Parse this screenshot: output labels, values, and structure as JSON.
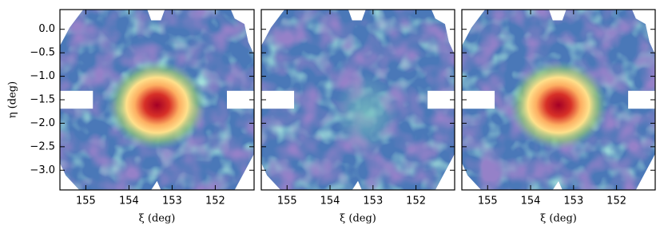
{
  "chart_data": [
    {
      "type": "heatmap",
      "xlabel": "ξ (deg)",
      "ylabel": "η (deg)",
      "xlim": [
        155.6,
        151.1
      ],
      "xticks": [
        155,
        154,
        153,
        152
      ],
      "ylim": [
        -3.42,
        0.42
      ],
      "yticks": [
        {
          "value": 0.0,
          "label": "0.0"
        },
        {
          "value": -0.5,
          "label": "−0.5"
        },
        {
          "value": -1.0,
          "label": "−1.0"
        },
        {
          "value": -1.5,
          "label": "−1.5"
        },
        {
          "value": -2.0,
          "label": "−2.0"
        },
        {
          "value": -2.5,
          "label": "−2.5"
        },
        {
          "value": -3.0,
          "label": "−3.0"
        }
      ]
    },
    {
      "type": "heatmap",
      "xlabel": "ξ (deg)",
      "xlim": [
        155.6,
        151.1
      ],
      "xticks": [
        155,
        154,
        153,
        152
      ],
      "ylim": [
        -3.42,
        0.42
      ]
    },
    {
      "type": "heatmap",
      "xlabel": "ξ (deg)",
      "xlim": [
        155.6,
        151.1
      ],
      "xticks": [
        155,
        154,
        153,
        152
      ],
      "ylim": [
        -3.42,
        0.42
      ]
    }
  ]
}
